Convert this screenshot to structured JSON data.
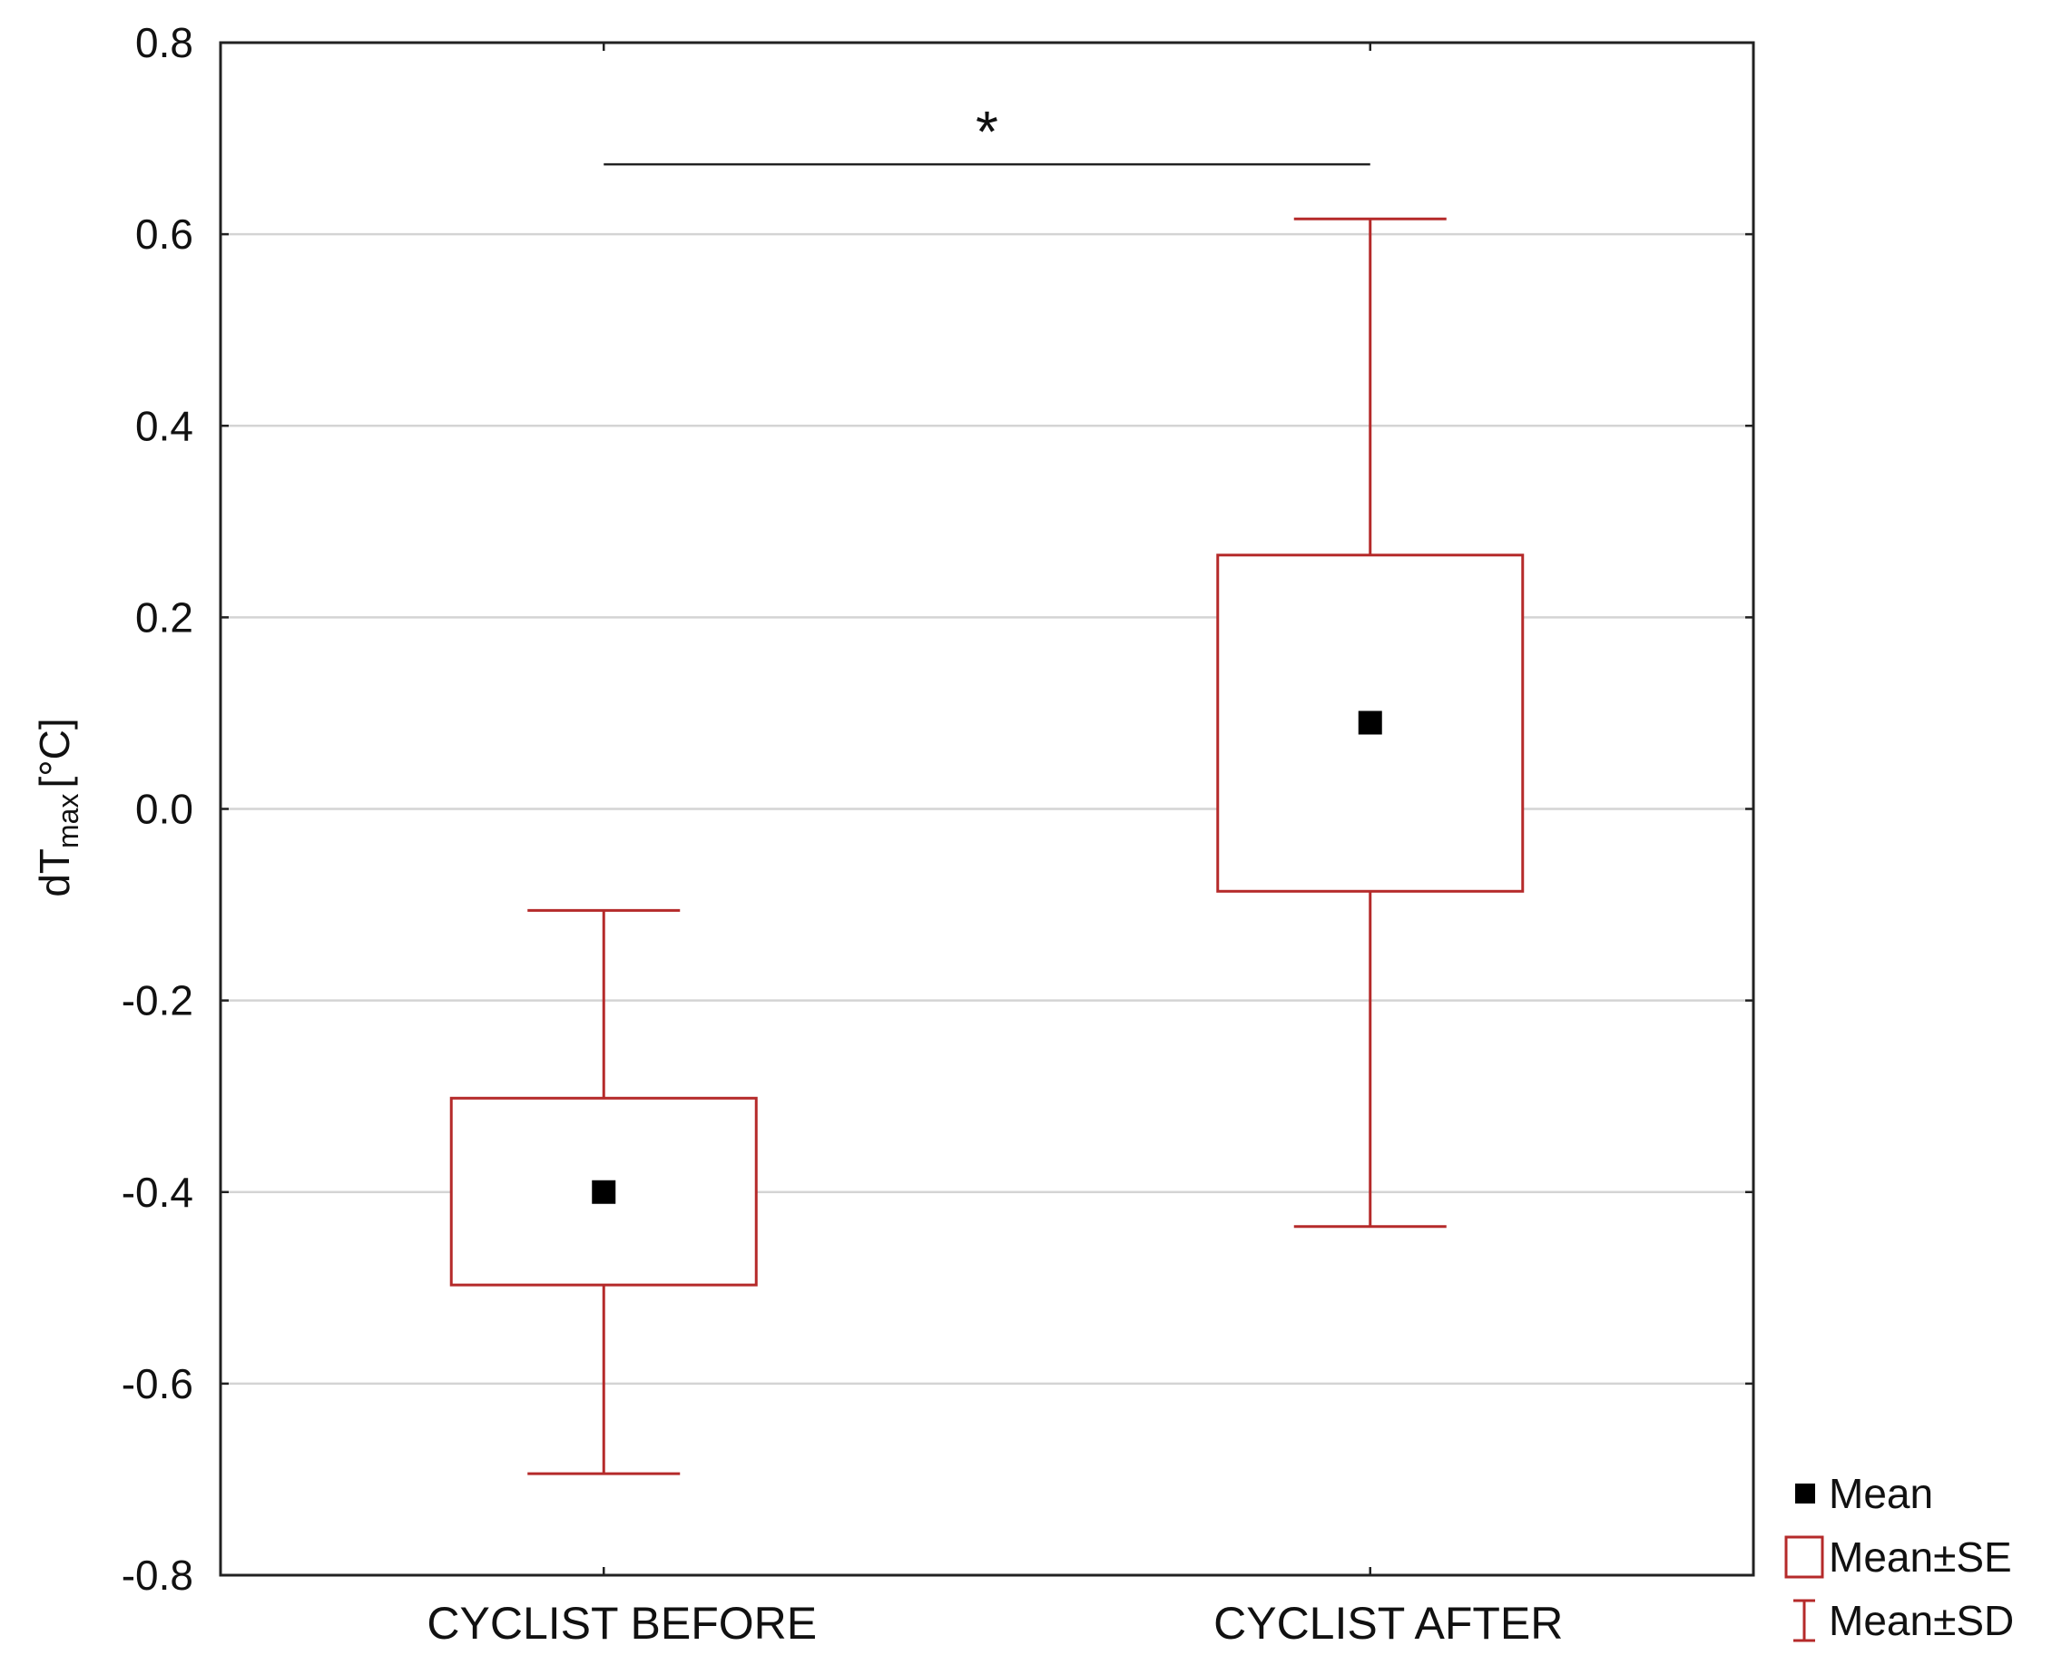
{
  "chart_data": {
    "type": "box",
    "title": "",
    "xlabel": "",
    "ylabel": "dT",
    "ylabel_subscript": "max",
    "ylabel_unit": "[°C]",
    "ylim": [
      -0.8,
      0.8
    ],
    "yticks": [
      {
        "value": 0.8,
        "label": "0.8"
      },
      {
        "value": 0.6,
        "label": "0.6"
      },
      {
        "value": 0.4,
        "label": "0.4"
      },
      {
        "value": 0.2,
        "label": "0.2"
      },
      {
        "value": 0.0,
        "label": "0.0"
      },
      {
        "value": -0.2,
        "label": "-0.2"
      },
      {
        "value": -0.4,
        "label": "-0.4"
      },
      {
        "value": -0.6,
        "label": "-0.6"
      },
      {
        "value": -0.8,
        "label": "-0.8"
      }
    ],
    "grid": true,
    "categories": [
      "CYCLIST BEFORE",
      "CYCLIST AFTER"
    ],
    "groups": [
      {
        "category": "CYCLIST BEFORE",
        "mean": -0.4,
        "se_low": -0.497,
        "se_high": -0.302,
        "sd_low": -0.694,
        "sd_high": -0.106
      },
      {
        "category": "CYCLIST AFTER",
        "mean": 0.09,
        "se_low": -0.086,
        "se_high": 0.265,
        "sd_low": -0.436,
        "sd_high": 0.616
      }
    ],
    "significance": {
      "from": 0,
      "to": 1,
      "y": 0.673,
      "label": "*"
    },
    "legend": {
      "position": "bottom-right-outside",
      "items": [
        {
          "symbol": "square-filled",
          "label": "Mean"
        },
        {
          "symbol": "box-outline",
          "label": "Mean±SE"
        },
        {
          "symbol": "whisker",
          "label": "Mean±SD"
        }
      ]
    },
    "colors": {
      "box": "#b52a2a",
      "mean": "#000000",
      "grid": "#d4d4d4",
      "axis": "#222222"
    }
  }
}
